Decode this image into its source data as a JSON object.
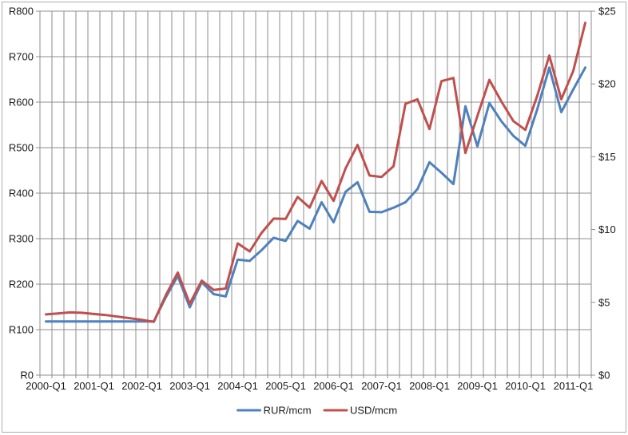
{
  "chart_data": {
    "type": "line",
    "title": "",
    "categories": [
      "2000-Q1",
      "2000-Q2",
      "2000-Q3",
      "2000-Q4",
      "2001-Q1",
      "2001-Q2",
      "2001-Q3",
      "2001-Q4",
      "2002-Q1",
      "2002-Q2",
      "2002-Q3",
      "2002-Q4",
      "2003-Q1",
      "2003-Q2",
      "2003-Q3",
      "2003-Q4",
      "2004-Q1",
      "2004-Q2",
      "2004-Q3",
      "2004-Q4",
      "2005-Q1",
      "2005-Q2",
      "2005-Q3",
      "2005-Q4",
      "2006-Q1",
      "2006-Q2",
      "2006-Q3",
      "2006-Q4",
      "2007-Q1",
      "2007-Q2",
      "2007-Q3",
      "2007-Q4",
      "2008-Q1",
      "2008-Q2",
      "2008-Q3",
      "2008-Q4",
      "2009-Q1",
      "2009-Q2",
      "2009-Q3",
      "2009-Q4",
      "2010-Q1",
      "2010-Q2",
      "2010-Q3",
      "2010-Q4",
      "2011-Q1",
      "2011-Q2"
    ],
    "x_tick_labels": [
      "2000-Q1",
      "2001-Q1",
      "2002-Q1",
      "2003-Q1",
      "2004-Q1",
      "2005-Q1",
      "2006-Q1",
      "2007-Q1",
      "2008-Q1",
      "2009-Q1",
      "2010-Q1",
      "2011-Q1"
    ],
    "series": [
      {
        "name": "RUR/mcm",
        "axis": "left",
        "color": "#4F81BD",
        "values": [
          118,
          118,
          118,
          118,
          118,
          118,
          118,
          118,
          118,
          118,
          171,
          218,
          149,
          204,
          178,
          173,
          254,
          251,
          275,
          302,
          295,
          339,
          322,
          380,
          336,
          403,
          424,
          359,
          358,
          368,
          380,
          409,
          468,
          445,
          420,
          591,
          503,
          598,
          558,
          526,
          504,
          585,
          676,
          578,
          628,
          676
        ]
      },
      {
        "name": "USD/mcm",
        "axis": "right",
        "color": "#C0504D",
        "values": [
          4.17,
          4.24,
          4.31,
          4.28,
          4.2,
          4.13,
          4.02,
          3.91,
          3.8,
          3.66,
          5.48,
          7.05,
          4.9,
          6.49,
          5.85,
          5.95,
          9.05,
          8.5,
          9.78,
          10.75,
          10.73,
          12.24,
          11.51,
          13.34,
          11.97,
          14.2,
          15.81,
          13.71,
          13.61,
          14.35,
          18.64,
          18.95,
          16.9,
          20.19,
          20.41,
          15.26,
          17.8,
          20.28,
          18.8,
          17.45,
          16.85,
          19.2,
          21.95,
          18.95,
          20.9,
          24.2
        ]
      }
    ],
    "left_axis": {
      "min": 0,
      "max": 800,
      "step": 100,
      "labels": [
        "R0",
        "R100",
        "R200",
        "R300",
        "R400",
        "R500",
        "R600",
        "R700",
        "R800"
      ]
    },
    "right_axis": {
      "min": 0,
      "max": 25,
      "step": 5,
      "labels": [
        "$0",
        "$5",
        "$10",
        "$15",
        "$20",
        "$25"
      ]
    },
    "legend": {
      "position": "bottom",
      "entries": [
        {
          "label": "RUR/mcm",
          "color": "#4F81BD"
        },
        {
          "label": "USD/mcm",
          "color": "#C0504D"
        }
      ]
    },
    "grid": {
      "horizontal": true,
      "vertical": true,
      "color": "#8C8C8C"
    },
    "xlabel": "",
    "ylabel": ""
  },
  "style": {
    "plot_border_color": "#8C8C8C",
    "outer_border_color": "#ACACAC",
    "background": "#FFFFFF",
    "text_color": "#1a1a1a",
    "line_width": 3
  }
}
